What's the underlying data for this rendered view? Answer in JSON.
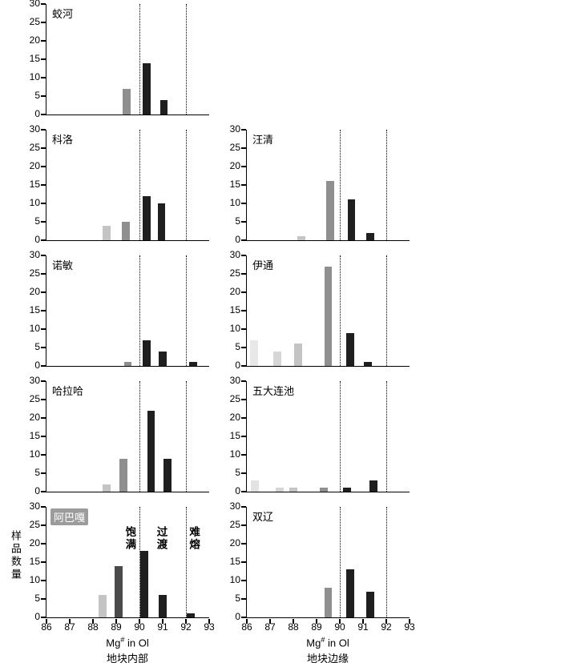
{
  "figure": {
    "y_axis_label": "样品数量",
    "x_axis_label_prefix": "Mg",
    "x_axis_label_sup": "#",
    "x_axis_label_suffix": " in Ol",
    "left_column_caption": "地块内部",
    "right_column_caption": "地块边缘",
    "x_ticks": [
      "86",
      "87",
      "88",
      "89",
      "90",
      "91",
      "92",
      "93"
    ],
    "y_ticks": [
      "0",
      "5",
      "10",
      "15",
      "20",
      "25",
      "30"
    ],
    "x_range": [
      86,
      93
    ],
    "y_range": [
      0,
      30
    ],
    "dashed_lines_x": [
      90,
      92
    ],
    "bar_width_units": 0.34,
    "axis_color": "#000000"
  },
  "chart_data": [
    {
      "id": "jiaohe",
      "type": "bar",
      "title": "蛟河",
      "column": "left",
      "row": 0,
      "show_x_labels": false,
      "bars": [
        {
          "x": 89.45,
          "height": 7,
          "color": "#8f8f8f"
        },
        {
          "x": 90.3,
          "height": 14,
          "color": "#1f1f1f"
        },
        {
          "x": 91.05,
          "height": 4,
          "color": "#1f1f1f"
        }
      ]
    },
    {
      "id": "keluo",
      "type": "bar",
      "title": "科洛",
      "column": "left",
      "row": 1,
      "show_x_labels": false,
      "bars": [
        {
          "x": 88.6,
          "height": 4,
          "color": "#c4c4c4"
        },
        {
          "x": 89.4,
          "height": 5,
          "color": "#8f8f8f"
        },
        {
          "x": 90.3,
          "height": 12,
          "color": "#1f1f1f"
        },
        {
          "x": 90.95,
          "height": 10,
          "color": "#1f1f1f"
        }
      ]
    },
    {
      "id": "nuomin",
      "type": "bar",
      "title": "诺敏",
      "column": "left",
      "row": 2,
      "show_x_labels": false,
      "bars": [
        {
          "x": 89.5,
          "height": 1,
          "color": "#8f8f8f"
        },
        {
          "x": 90.3,
          "height": 7,
          "color": "#1f1f1f"
        },
        {
          "x": 91.0,
          "height": 4,
          "color": "#1f1f1f"
        },
        {
          "x": 92.3,
          "height": 1,
          "color": "#1f1f1f"
        }
      ]
    },
    {
      "id": "halaha",
      "type": "bar",
      "title": "哈拉哈",
      "column": "left",
      "row": 3,
      "show_x_labels": false,
      "bars": [
        {
          "x": 88.6,
          "height": 2,
          "color": "#c4c4c4"
        },
        {
          "x": 89.3,
          "height": 9,
          "color": "#8f8f8f"
        },
        {
          "x": 90.5,
          "height": 22,
          "color": "#1f1f1f"
        },
        {
          "x": 91.2,
          "height": 9,
          "color": "#1f1f1f"
        }
      ]
    },
    {
      "id": "abaga",
      "type": "bar",
      "title": "阿巴嘎",
      "column": "left",
      "row": 4,
      "show_x_labels": true,
      "title_chip": true,
      "annotations": [
        {
          "x": 89.6,
          "label": "饱满"
        },
        {
          "x": 90.95,
          "label": "过渡"
        },
        {
          "x": 92.35,
          "label": "难熔"
        }
      ],
      "bars": [
        {
          "x": 88.4,
          "height": 6,
          "color": "#c4c4c4"
        },
        {
          "x": 89.1,
          "height": 14,
          "color": "#4a4a4a"
        },
        {
          "x": 90.2,
          "height": 18,
          "color": "#1f1f1f"
        },
        {
          "x": 91.0,
          "height": 6,
          "color": "#1f1f1f"
        },
        {
          "x": 92.2,
          "height": 1,
          "color": "#1f1f1f"
        }
      ]
    },
    {
      "id": "wangqing",
      "type": "bar",
      "title": "汪清",
      "column": "right",
      "row": 1,
      "show_x_labels": false,
      "bars": [
        {
          "x": 88.35,
          "height": 1,
          "color": "#c4c4c4"
        },
        {
          "x": 89.6,
          "height": 16,
          "color": "#8f8f8f"
        },
        {
          "x": 90.5,
          "height": 11,
          "color": "#1f1f1f"
        },
        {
          "x": 91.3,
          "height": 2,
          "color": "#1f1f1f"
        }
      ]
    },
    {
      "id": "yitong",
      "type": "bar",
      "title": "伊通",
      "column": "right",
      "row": 2,
      "show_x_labels": false,
      "bars": [
        {
          "x": 86.3,
          "height": 7,
          "color": "#e8e8e8"
        },
        {
          "x": 87.3,
          "height": 4,
          "color": "#d6d6d6"
        },
        {
          "x": 88.2,
          "height": 6,
          "color": "#c4c4c4"
        },
        {
          "x": 89.5,
          "height": 27,
          "color": "#8f8f8f"
        },
        {
          "x": 90.45,
          "height": 9,
          "color": "#1f1f1f"
        },
        {
          "x": 91.2,
          "height": 1,
          "color": "#1f1f1f"
        }
      ]
    },
    {
      "id": "wudalianchi",
      "type": "bar",
      "title": "五大连池",
      "column": "right",
      "row": 3,
      "show_x_labels": false,
      "bars": [
        {
          "x": 86.35,
          "height": 3,
          "color": "#e3e3e3"
        },
        {
          "x": 87.4,
          "height": 1,
          "color": "#d6d6d6"
        },
        {
          "x": 88.0,
          "height": 1,
          "color": "#c4c4c4"
        },
        {
          "x": 89.3,
          "height": 1,
          "color": "#8f8f8f"
        },
        {
          "x": 90.3,
          "height": 1,
          "color": "#1f1f1f"
        },
        {
          "x": 91.45,
          "height": 3,
          "color": "#1f1f1f"
        }
      ]
    },
    {
      "id": "shuangliao",
      "type": "bar",
      "title": "双辽",
      "column": "right",
      "row": 4,
      "show_x_labels": true,
      "bars": [
        {
          "x": 89.5,
          "height": 8,
          "color": "#8f8f8f"
        },
        {
          "x": 90.45,
          "height": 13,
          "color": "#1f1f1f"
        },
        {
          "x": 91.3,
          "height": 7,
          "color": "#1f1f1f"
        }
      ]
    }
  ]
}
